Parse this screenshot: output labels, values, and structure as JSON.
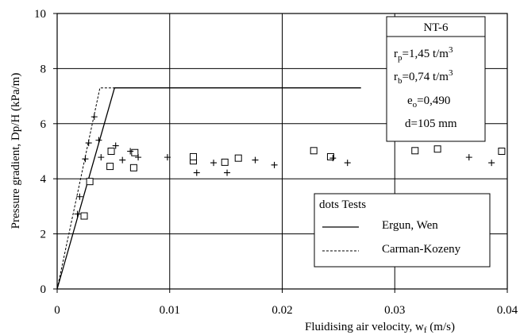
{
  "chart_data": {
    "type": "scatter",
    "xlabel": "Fluidising air velocity, w",
    "xlabel_sub": "f",
    "xlabel_unit": " (m/s)",
    "ylabel": "Pressure gradient, Dp/H (kPa/m)",
    "xlim": [
      0,
      0.04
    ],
    "ylim": [
      0,
      10
    ],
    "x_ticks": [
      0,
      0.01,
      0.02,
      0.03,
      0.04
    ],
    "x_tick_labels": [
      "0",
      "0.01",
      "0.02",
      "0.03",
      "0.04"
    ],
    "y_ticks": [
      0,
      2,
      4,
      6,
      8,
      10
    ],
    "y_tick_labels": [
      "0",
      "2",
      "4",
      "6",
      "8",
      "10"
    ],
    "grid": true,
    "series": [
      {
        "name": "Ergun, Wen",
        "style": "line-solid",
        "points": [
          [
            0,
            0
          ],
          [
            0.0051,
            7.3
          ],
          [
            0.027,
            7.3
          ]
        ]
      },
      {
        "name": "Carman-Kozeny",
        "style": "line-dashed",
        "points": [
          [
            0,
            0
          ],
          [
            0.0038,
            7.3
          ],
          [
            0.0051,
            7.3
          ]
        ]
      },
      {
        "name": "",
        "style": "marker-square",
        "points": [
          [
            0.0024,
            2.65
          ],
          [
            0.0029,
            3.9
          ],
          [
            0.0047,
            4.45
          ],
          [
            0.0048,
            5.0
          ],
          [
            0.0068,
            4.4
          ],
          [
            0.0069,
            4.95
          ],
          [
            0.0121,
            4.65
          ],
          [
            0.0121,
            4.8
          ],
          [
            0.0149,
            4.6
          ],
          [
            0.0161,
            4.75
          ],
          [
            0.0228,
            5.02
          ],
          [
            0.0243,
            4.8
          ],
          [
            0.0318,
            5.02
          ],
          [
            0.0338,
            5.08
          ],
          [
            0.0395,
            5.0
          ]
        ]
      },
      {
        "name": "",
        "style": "marker-plus",
        "points": [
          [
            0.0018,
            2.72
          ],
          [
            0.002,
            3.35
          ],
          [
            0.0025,
            4.72
          ],
          [
            0.0028,
            5.3
          ],
          [
            0.0033,
            6.25
          ],
          [
            0.0037,
            5.4
          ],
          [
            0.0039,
            4.78
          ],
          [
            0.0052,
            5.2
          ],
          [
            0.0058,
            4.68
          ],
          [
            0.0065,
            5.0
          ],
          [
            0.0072,
            4.78
          ],
          [
            0.0098,
            4.78
          ],
          [
            0.0124,
            4.22
          ],
          [
            0.0139,
            4.58
          ],
          [
            0.0151,
            4.22
          ],
          [
            0.0176,
            4.68
          ],
          [
            0.0193,
            4.5
          ],
          [
            0.0245,
            4.75
          ],
          [
            0.0258,
            4.58
          ],
          [
            0.0366,
            4.78
          ],
          [
            0.0386,
            4.58
          ]
        ]
      }
    ],
    "legend": {
      "placement": "lower-right",
      "title": "dots Tests",
      "entries": [
        {
          "label": "Ergun, Wen",
          "style": "solid"
        },
        {
          "label": "Carman-Kozeny",
          "style": "dashed"
        }
      ]
    },
    "info_box": {
      "placement": "top-right",
      "title": "NT-6",
      "lines": [
        {
          "sym": "r",
          "sub": "p",
          "text": "=1,45 t/m",
          "sup": "3"
        },
        {
          "sym": "r",
          "sub": "b",
          "text": "=0,74 t/m",
          "sup": "3"
        },
        {
          "sym": "e",
          "sub": "o",
          "text": "=0,490",
          "sup": ""
        },
        {
          "sym": "",
          "sub": "",
          "text": "d=105 mm",
          "sup": ""
        }
      ]
    }
  }
}
